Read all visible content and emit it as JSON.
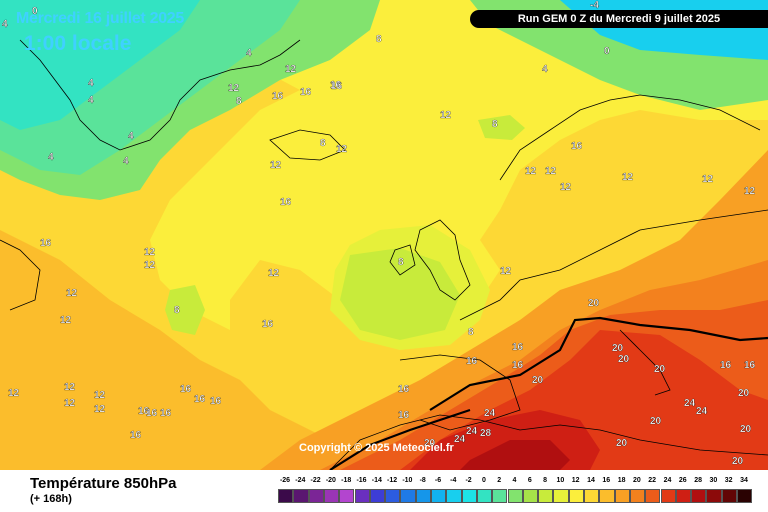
{
  "header": {
    "date": "Mercredi 16 juillet 2025",
    "time": "1:00 locale",
    "run": "Run GEM 0 Z du Mercredi 9 juillet 2025"
  },
  "copyright": "Copyright © 2025 Meteociel.fr",
  "footer": {
    "variable": "Température 850hPa",
    "lead": "(+ 168h)"
  },
  "legend": {
    "values": [
      "-26",
      "-24",
      "-22",
      "-20",
      "-18",
      "-16",
      "-14",
      "-12",
      "-10",
      "-8",
      "-6",
      "-4",
      "-2",
      "0",
      "2",
      "4",
      "6",
      "8",
      "10",
      "12",
      "14",
      "16",
      "18",
      "20",
      "22",
      "24",
      "26",
      "28",
      "30",
      "32",
      "34"
    ],
    "colors": [
      "#3b0a4a",
      "#5a1670",
      "#7b2596",
      "#9a35b5",
      "#b345cf",
      "#6a2fbf",
      "#3d3dd6",
      "#2c5ce0",
      "#1f7ae6",
      "#1596ea",
      "#12b2ef",
      "#18cfee",
      "#1de3e6",
      "#33e3c2",
      "#5ae39a",
      "#82e36e",
      "#a6e349",
      "#c8eb3b",
      "#e6f03a",
      "#fbee3c",
      "#fdd835",
      "#fbbd2c",
      "#f8a024",
      "#f3811e",
      "#ec5c1a",
      "#e23a16",
      "#cf1f14",
      "#b00f10",
      "#8c0a0a",
      "#620606",
      "#2a0202"
    ]
  },
  "map": {
    "colors": {
      "cold_0": "#18cfee",
      "t2": "#33e3c2",
      "t4": "#82e36e",
      "t8": "#c8eb3b",
      "t10": "#e6f03a",
      "t12": "#fbee3c",
      "t14": "#fdd835",
      "t16": "#fbbd2c",
      "t18": "#f8a024",
      "t20": "#f3811e",
      "t22": "#ec5c1a",
      "t24": "#e23a16",
      "t26": "#cf1f14",
      "t28": "#b00f10"
    },
    "contour_labels": [
      {
        "t": "0",
        "id": "c0a"
      },
      {
        "t": "4",
        "id": "c4a"
      },
      {
        "t": "-4",
        "id": "cm4"
      },
      {
        "t": "0",
        "id": "c0b"
      },
      {
        "t": "8",
        "id": "c8a"
      },
      {
        "t": "4",
        "id": "c4b"
      },
      {
        "t": "4",
        "id": "c4c"
      },
      {
        "t": "12",
        "id": "c12a"
      },
      {
        "t": "8",
        "id": "c8b"
      },
      {
        "t": "16",
        "id": "c16a"
      },
      {
        "t": "16",
        "id": "c16b"
      },
      {
        "t": "16",
        "id": "c16c"
      },
      {
        "t": "12",
        "id": "c12b"
      },
      {
        "t": "8",
        "id": "c8c"
      },
      {
        "t": "16",
        "id": "c16d"
      },
      {
        "t": "4",
        "id": "c4d"
      },
      {
        "t": "4",
        "id": "c4e"
      },
      {
        "t": "4",
        "id": "c4f"
      },
      {
        "t": "4",
        "id": "c4g"
      },
      {
        "t": "8",
        "id": "c8d"
      },
      {
        "t": "12",
        "id": "c12c"
      },
      {
        "t": "12",
        "id": "c12d"
      },
      {
        "t": "16",
        "id": "c16e"
      },
      {
        "t": "12",
        "id": "c12e"
      },
      {
        "t": "12",
        "id": "c12f"
      },
      {
        "t": "12",
        "id": "c12g"
      },
      {
        "t": "12",
        "id": "c12h"
      },
      {
        "t": "12",
        "id": "c12i"
      },
      {
        "t": "12",
        "id": "c12j"
      },
      {
        "t": "16",
        "id": "c16f"
      },
      {
        "t": "16",
        "id": "c16g"
      },
      {
        "t": "12",
        "id": "c12k"
      },
      {
        "t": "12",
        "id": "c12l"
      },
      {
        "t": "12",
        "id": "c12m"
      },
      {
        "t": "12",
        "id": "c12n"
      },
      {
        "t": "8",
        "id": "c8e"
      },
      {
        "t": "12",
        "id": "c12o"
      },
      {
        "t": "8",
        "id": "c8f"
      },
      {
        "t": "12",
        "id": "c12p"
      },
      {
        "t": "16",
        "id": "c16h"
      },
      {
        "t": "20",
        "id": "c20a"
      },
      {
        "t": "8",
        "id": "c8g"
      },
      {
        "t": "16",
        "id": "c16i"
      },
      {
        "t": "20",
        "id": "c20b"
      },
      {
        "t": "20",
        "id": "c20c"
      },
      {
        "t": "16",
        "id": "c16j"
      },
      {
        "t": "16",
        "id": "c16k"
      },
      {
        "t": "20",
        "id": "c20d"
      },
      {
        "t": "12",
        "id": "c12q"
      },
      {
        "t": "12",
        "id": "c12r"
      },
      {
        "t": "16",
        "id": "c16l"
      },
      {
        "t": "16",
        "id": "c16m"
      },
      {
        "t": "16",
        "id": "c16n"
      },
      {
        "t": "16",
        "id": "c16o"
      },
      {
        "t": "16",
        "id": "c16p"
      },
      {
        "t": "16",
        "id": "c16q"
      },
      {
        "t": "24",
        "id": "c24a"
      },
      {
        "t": "24",
        "id": "c24b"
      },
      {
        "t": "28",
        "id": "c28a"
      },
      {
        "t": "24",
        "id": "c24c"
      },
      {
        "t": "20",
        "id": "c20e"
      },
      {
        "t": "20",
        "id": "c20f"
      },
      {
        "t": "24",
        "id": "c24d"
      },
      {
        "t": "24",
        "id": "c24e"
      },
      {
        "t": "20",
        "id": "c20g"
      },
      {
        "t": "20",
        "id": "c20h"
      },
      {
        "t": "20",
        "id": "c20i"
      },
      {
        "t": "20",
        "id": "c20j"
      },
      {
        "t": "20",
        "id": "c20k"
      },
      {
        "t": "16",
        "id": "c16r"
      },
      {
        "t": "16",
        "id": "c16s"
      },
      {
        "t": "12",
        "id": "c12s"
      },
      {
        "t": "12",
        "id": "c12t"
      },
      {
        "t": "12",
        "id": "c12u"
      },
      {
        "t": "12",
        "id": "c12v"
      },
      {
        "t": "16",
        "id": "c16t"
      },
      {
        "t": "16",
        "id": "c16u"
      },
      {
        "t": "16",
        "id": "c16v"
      },
      {
        "t": "4",
        "id": "c4h"
      }
    ]
  }
}
